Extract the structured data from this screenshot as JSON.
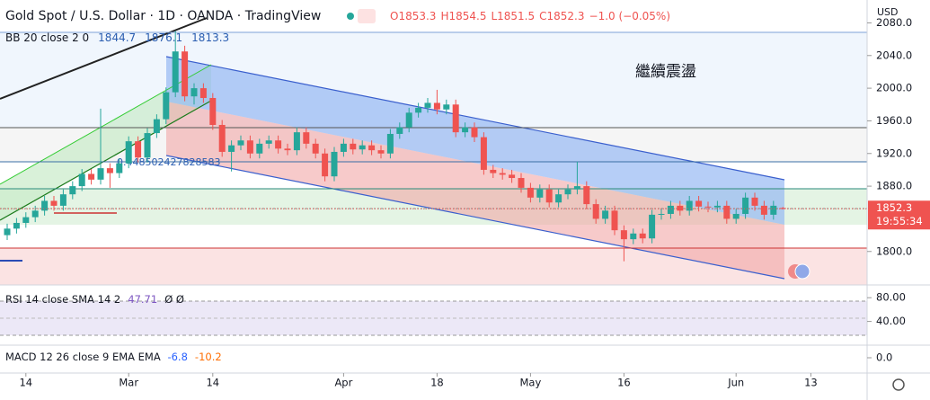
{
  "chart_data": {
    "type": "candlestick",
    "title": "Gold Spot / U.S. Dollar · 1D · OANDA · TradingView",
    "ohlc_labels": [
      "O1853.3",
      "H1854.5",
      "L1851.5",
      "C1852.3",
      "−1.0 (−0.05%)"
    ],
    "currency": "USD",
    "bb": {
      "label": "BB 20 close 2 0",
      "values": [
        1844.7,
        1876.1,
        1813.3
      ]
    },
    "rsi": {
      "label": "RSI 14 close SMA 14 2",
      "value": 47.71,
      "extra": "Ø Ø",
      "yticks": [
        {
          "value": 80,
          "label": "80.00"
        },
        {
          "value": 40,
          "label": "40.00"
        }
      ],
      "ylim": [
        100,
        0
      ]
    },
    "macd": {
      "label": "MACD 12 26 close 9 EMA EMA",
      "values": [
        -6.8,
        -10.2
      ],
      "yticks": [
        {
          "value": 0,
          "label": "0.0"
        }
      ]
    },
    "annotation": "繼續震盪",
    "fib_label": "0.448502427828583",
    "last_price_label": "1852.3",
    "countdown": "19:55:34",
    "up_color": "#26a69a",
    "down_color": "#ef5350",
    "ylim": [
      1759,
      2086
    ],
    "yticks": [
      {
        "value": 2080,
        "label": "2080.0"
      },
      {
        "value": 2040,
        "label": "2040.0"
      },
      {
        "value": 2000,
        "label": "2000.0"
      },
      {
        "value": 1960,
        "label": "1960.0"
      },
      {
        "value": 1920,
        "label": "1920.0"
      },
      {
        "value": 1880,
        "label": "1880.0"
      },
      {
        "value": 1800,
        "label": "1800.0"
      }
    ],
    "xticks": [
      {
        "value": 2,
        "label": "14"
      },
      {
        "value": 13,
        "label": "Mar"
      },
      {
        "value": 22,
        "label": "14"
      },
      {
        "value": 36,
        "label": "Apr"
      },
      {
        "value": 46,
        "label": "18"
      },
      {
        "value": 56,
        "label": "May"
      },
      {
        "value": 66,
        "label": "16"
      },
      {
        "value": 78,
        "label": "Jun"
      },
      {
        "value": 86,
        "label": "13"
      }
    ],
    "candles": [
      [
        1820,
        1834,
        1814,
        1828
      ],
      [
        1828,
        1841,
        1822,
        1835
      ],
      [
        1835,
        1848,
        1829,
        1842
      ],
      [
        1842,
        1856,
        1836,
        1850
      ],
      [
        1850,
        1868,
        1844,
        1862
      ],
      [
        1862,
        1868,
        1850,
        1856
      ],
      [
        1856,
        1876,
        1850,
        1870
      ],
      [
        1870,
        1886,
        1864,
        1880
      ],
      [
        1880,
        1901,
        1874,
        1895
      ],
      [
        1895,
        1901,
        1882,
        1888
      ],
      [
        1888,
        1975,
        1882,
        1902
      ],
      [
        1902,
        1908,
        1878,
        1896
      ],
      [
        1896,
        1914,
        1890,
        1908
      ],
      [
        1908,
        1941,
        1902,
        1935
      ],
      [
        1935,
        1941,
        1909,
        1915
      ],
      [
        1915,
        1951,
        1909,
        1945
      ],
      [
        1945,
        1968,
        1939,
        1962
      ],
      [
        1962,
        2001,
        1956,
        1995
      ],
      [
        1995,
        2070,
        1989,
        2045
      ],
      [
        2045,
        2052,
        1984,
        1990
      ],
      [
        1990,
        2006,
        1980,
        2000
      ],
      [
        2000,
        2006,
        1982,
        1988
      ],
      [
        1988,
        1994,
        1949,
        1955
      ],
      [
        1955,
        1961,
        1916,
        1922
      ],
      [
        1922,
        1936,
        1898,
        1930
      ],
      [
        1930,
        1942,
        1924,
        1936
      ],
      [
        1936,
        1942,
        1914,
        1920
      ],
      [
        1920,
        1938,
        1914,
        1932
      ],
      [
        1932,
        1942,
        1926,
        1936
      ],
      [
        1936,
        1942,
        1920,
        1926
      ],
      [
        1926,
        1932,
        1918,
        1924
      ],
      [
        1924,
        1952,
        1918,
        1946
      ],
      [
        1946,
        1952,
        1926,
        1932
      ],
      [
        1932,
        1938,
        1914,
        1920
      ],
      [
        1920,
        1926,
        1886,
        1892
      ],
      [
        1892,
        1928,
        1886,
        1922
      ],
      [
        1922,
        1938,
        1916,
        1932
      ],
      [
        1932,
        1938,
        1919,
        1925
      ],
      [
        1925,
        1936,
        1919,
        1930
      ],
      [
        1930,
        1936,
        1918,
        1924
      ],
      [
        1924,
        1930,
        1914,
        1920
      ],
      [
        1920,
        1950,
        1914,
        1944
      ],
      [
        1944,
        1958,
        1938,
        1952
      ],
      [
        1952,
        1976,
        1946,
        1970
      ],
      [
        1970,
        1982,
        1964,
        1976
      ],
      [
        1976,
        1988,
        1970,
        1982
      ],
      [
        1982,
        1998,
        1968,
        1974
      ],
      [
        1974,
        1986,
        1968,
        1980
      ],
      [
        1980,
        1986,
        1940,
        1946
      ],
      [
        1946,
        1958,
        1940,
        1952
      ],
      [
        1952,
        1958,
        1934,
        1940
      ],
      [
        1940,
        1946,
        1894,
        1900
      ],
      [
        1900,
        1906,
        1890,
        1896
      ],
      [
        1896,
        1902,
        1888,
        1894
      ],
      [
        1894,
        1900,
        1884,
        1890
      ],
      [
        1890,
        1896,
        1872,
        1878
      ],
      [
        1878,
        1884,
        1860,
        1866
      ],
      [
        1866,
        1882,
        1860,
        1876
      ],
      [
        1876,
        1882,
        1854,
        1860
      ],
      [
        1860,
        1876,
        1854,
        1870
      ],
      [
        1870,
        1882,
        1864,
        1876
      ],
      [
        1876,
        1910,
        1870,
        1880
      ],
      [
        1880,
        1886,
        1852,
        1858
      ],
      [
        1858,
        1864,
        1834,
        1840
      ],
      [
        1840,
        1856,
        1834,
        1850
      ],
      [
        1850,
        1856,
        1820,
        1826
      ],
      [
        1826,
        1832,
        1788,
        1815
      ],
      [
        1815,
        1828,
        1809,
        1822
      ],
      [
        1822,
        1828,
        1810,
        1816
      ],
      [
        1816,
        1851,
        1810,
        1845
      ],
      [
        1845,
        1852,
        1839,
        1846
      ],
      [
        1846,
        1862,
        1840,
        1856
      ],
      [
        1856,
        1862,
        1844,
        1850
      ],
      [
        1850,
        1868,
        1844,
        1862
      ],
      [
        1862,
        1868,
        1849,
        1855
      ],
      [
        1855,
        1861,
        1848,
        1854
      ],
      [
        1854,
        1862,
        1848,
        1856
      ],
      [
        1856,
        1862,
        1834,
        1840
      ],
      [
        1840,
        1852,
        1834,
        1846
      ],
      [
        1846,
        1872,
        1840,
        1866
      ],
      [
        1866,
        1872,
        1850,
        1856
      ],
      [
        1856,
        1862,
        1839,
        1845
      ],
      [
        1845,
        1862,
        1839,
        1856
      ],
      [
        1853.3,
        1854.5,
        1851.5,
        1852.3
      ]
    ]
  }
}
